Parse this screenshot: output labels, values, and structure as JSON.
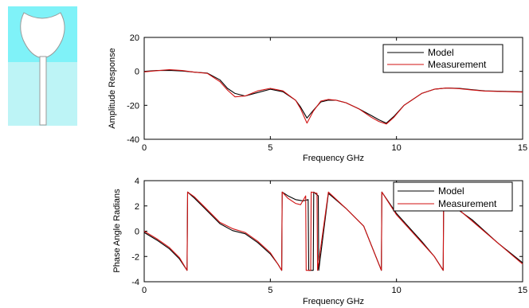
{
  "antenna_image": {
    "colors": {
      "background_top": "#7ff2f8",
      "background_bottom": "#bdf4f6",
      "metal": "#ffffff",
      "edge": "#9a9a9a"
    }
  },
  "chart_data": [
    {
      "type": "line",
      "xlabel": "Frequency GHz",
      "ylabel": "Amplitude Response",
      "xlim": [
        0,
        15
      ],
      "ylim": [
        -40,
        20
      ],
      "xticks": [
        "0",
        "5",
        "10",
        "15"
      ],
      "yticks": [
        "-40",
        "-20",
        "0",
        "20"
      ],
      "grid": false,
      "legend": "top-right",
      "series": [
        {
          "name": "Model",
          "color": "#000000",
          "x": [
            0,
            0.5,
            1,
            1.5,
            2,
            2.5,
            3,
            3.3,
            3.6,
            4,
            4.5,
            5,
            5.5,
            6,
            6.2,
            6.45,
            6.7,
            7,
            7.3,
            7.6,
            8,
            8.5,
            9,
            9.3,
            9.6,
            9.9,
            10.3,
            11,
            11.5,
            12,
            12.5,
            13,
            13.5,
            14,
            15
          ],
          "y": [
            0,
            0.5,
            0.6,
            0.2,
            -0.5,
            -1,
            -5,
            -10,
            -13,
            -14.5,
            -12.5,
            -10.5,
            -12,
            -17,
            -21,
            -27.5,
            -23,
            -18,
            -17,
            -17,
            -18.5,
            -22,
            -26,
            -28.5,
            -30.5,
            -26.5,
            -20,
            -13,
            -10.5,
            -9.8,
            -10,
            -10.8,
            -11.5,
            -11.7,
            -12
          ]
        },
        {
          "name": "Measurement",
          "color": "#d11212",
          "x": [
            0,
            0.5,
            1,
            1.5,
            2,
            2.5,
            3,
            3.3,
            3.6,
            4,
            4.5,
            5,
            5.5,
            6,
            6.2,
            6.45,
            6.7,
            7,
            7.3,
            7.6,
            8,
            8.5,
            9,
            9.3,
            9.6,
            9.9,
            10.3,
            11,
            11.5,
            12,
            12.5,
            13,
            13.5,
            14,
            15
          ],
          "y": [
            -0.3,
            0.4,
            1.0,
            0.5,
            -0.5,
            -1.2,
            -6,
            -11,
            -15,
            -14.5,
            -11.5,
            -10,
            -11.5,
            -17,
            -22,
            -30.5,
            -23.5,
            -17.5,
            -16.5,
            -17,
            -18.5,
            -22,
            -27,
            -29.5,
            -31,
            -27,
            -20,
            -13,
            -10.5,
            -9.8,
            -10.2,
            -11,
            -11.6,
            -11.8,
            -12.2
          ]
        }
      ]
    },
    {
      "type": "line",
      "xlabel": "Frequency GHz",
      "ylabel": "Phase Angle Radians",
      "xlim": [
        0,
        15
      ],
      "ylim": [
        -4,
        4
      ],
      "xticks": [
        "0",
        "5",
        "10",
        "15"
      ],
      "yticks": [
        "-4",
        "-2",
        "0",
        "2",
        "4"
      ],
      "grid": false,
      "legend": "top-right",
      "series": [
        {
          "name": "Model",
          "color": "#000000",
          "x": [
            0,
            0.5,
            1,
            1.4,
            1.7,
            1.72,
            2,
            2.4,
            3,
            3.5,
            4,
            4.5,
            5,
            5.3,
            5.45,
            5.47,
            5.7,
            6,
            6.3,
            6.5,
            6.52,
            6.7,
            6.72,
            6.9,
            6.92,
            7.3,
            8,
            8.7,
            9.4,
            9.42,
            10,
            10.5,
            11,
            11.5,
            11.85,
            11.87,
            12.3,
            13,
            14,
            15
          ],
          "y": [
            -0.1,
            -0.7,
            -1.4,
            -2.2,
            -3.1,
            3.1,
            2.6,
            1.8,
            0.6,
            0.05,
            -0.2,
            -0.9,
            -1.8,
            -2.6,
            -3.1,
            3.1,
            2.8,
            2.5,
            2.4,
            2.5,
            -3.1,
            -3.1,
            3.1,
            2.8,
            -3.1,
            3.0,
            1.8,
            0.4,
            -3.1,
            3.1,
            1.4,
            0.3,
            -0.8,
            -2.0,
            -3.1,
            3.1,
            1.9,
            0.9,
            -0.9,
            -2.5
          ]
        },
        {
          "name": "Measurement",
          "color": "#d11212",
          "x": [
            0,
            0.5,
            1,
            1.4,
            1.7,
            1.72,
            2,
            2.4,
            3,
            3.5,
            4,
            4.5,
            5,
            5.3,
            5.45,
            5.47,
            5.7,
            6,
            6.2,
            6.4,
            6.42,
            6.6,
            6.62,
            6.85,
            6.87,
            7.3,
            8,
            8.7,
            9.4,
            9.42,
            10,
            10.5,
            11,
            11.5,
            11.85,
            11.87,
            12.3,
            13,
            14,
            15
          ],
          "y": [
            0,
            -0.6,
            -1.3,
            -2.1,
            -3.1,
            3.1,
            2.7,
            1.9,
            0.7,
            0.2,
            -0.1,
            -0.8,
            -1.7,
            -2.6,
            -3.1,
            3.1,
            2.6,
            2.2,
            2.1,
            2.8,
            -3.1,
            -3.1,
            3.1,
            3.0,
            -3.1,
            3.1,
            1.8,
            0.4,
            -3.1,
            3.1,
            1.3,
            0.2,
            -0.9,
            -2.0,
            -3.1,
            3.1,
            2.0,
            0.8,
            -0.9,
            -2.6
          ]
        }
      ]
    }
  ]
}
